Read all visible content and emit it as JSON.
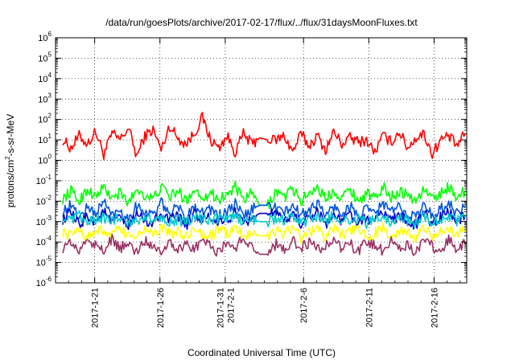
{
  "chart_data": {
    "type": "line",
    "title": "/data/run/goesPlots/archive/2017-02-17/flux/../flux/31daysMoonFluxes.txt",
    "xlabel": "Coordinated Universal Time (UTC)",
    "ylabel_parts": [
      "protons/cm",
      "2",
      "-s-sr-MeV"
    ],
    "yscale": "log",
    "ylim": [
      1e-06,
      1000000.0
    ],
    "y_tick_labels": [
      {
        "base": "10",
        "exp": "-6"
      },
      {
        "base": "10",
        "exp": "-5"
      },
      {
        "base": "10",
        "exp": "-4"
      },
      {
        "base": "10",
        "exp": "-3"
      },
      {
        "base": "10",
        "exp": "-2"
      },
      {
        "base": "10",
        "exp": "-1"
      },
      {
        "base": "10",
        "exp": "0"
      },
      {
        "base": "10",
        "exp": "1"
      },
      {
        "base": "10",
        "exp": "2"
      },
      {
        "base": "10",
        "exp": "3"
      },
      {
        "base": "10",
        "exp": "4"
      },
      {
        "base": "10",
        "exp": "5"
      },
      {
        "base": "10",
        "exp": "6"
      }
    ],
    "xlim": [
      "2017-01-18",
      "2017-02-18T12:00"
    ],
    "x_ticks": [
      {
        "date": "2017-01-21",
        "label": [
          "2017-1-21"
        ]
      },
      {
        "date": "2017-01-26",
        "label": [
          "2017-1-26"
        ]
      },
      {
        "date": "2017-01-31",
        "label": [
          "2017-1-31",
          "2017-2-1"
        ]
      },
      {
        "date": "2017-02-06",
        "label": [
          "2017-2-6"
        ]
      },
      {
        "date": "2017-02-11",
        "label": [
          "2017-2-11"
        ]
      },
      {
        "date": "2017-02-16",
        "label": [
          "2017-2-16"
        ]
      }
    ],
    "grid": true,
    "series": [
      {
        "color": "#ff0000",
        "values_log10": [
          1.0,
          0.6,
          1.2,
          0.8,
          1.4,
          0.3,
          1.3,
          1.0,
          1.6,
          0.2,
          1.2,
          1.5,
          0.5,
          1.7,
          1.1,
          0.8,
          1.3,
          2.1,
          1.0,
          0.6,
          1.2,
          0.4,
          1.3,
          0.8,
          1.1,
          1.0,
          1.0,
          1.2,
          0.4,
          1.3,
          0.7,
          1.2,
          0.5,
          1.4,
          0.8,
          1.1,
          0.9,
          1.0,
          0.4,
          1.2,
          0.9,
          1.4,
          0.6,
          1.1,
          1.3,
          0.3,
          1.0,
          1.2,
          0.7,
          1.3
        ]
      },
      {
        "color": "#00ff00",
        "values_log10": [
          -1.9,
          -1.5,
          -2.0,
          -1.4,
          -1.8,
          -1.3,
          -1.9,
          -1.6,
          -2.1,
          -1.4,
          -1.7,
          -1.9,
          -1.3,
          -1.8,
          -1.5,
          -2.0,
          -1.4,
          -1.8,
          -1.6,
          -1.9,
          -1.7,
          -1.3,
          -2.0,
          -1.6,
          -2.2,
          -2.2,
          -1.5,
          -1.8,
          -1.4,
          -2.0,
          -1.6,
          -1.3,
          -1.9,
          -1.5,
          -1.8,
          -1.4,
          -2.0,
          -1.6,
          -1.9,
          -1.3,
          -1.8,
          -1.5,
          -1.7,
          -2.0,
          -1.4,
          -1.9,
          -1.6,
          -1.3,
          -1.8,
          -1.5
        ]
      },
      {
        "color": "#0055dd",
        "values_log10": [
          -2.5,
          -2.2,
          -2.8,
          -2.3,
          -2.6,
          -2.0,
          -2.7,
          -2.4,
          -2.9,
          -2.2,
          -2.5,
          -2.7,
          -2.1,
          -2.6,
          -2.3,
          -2.8,
          -2.2,
          -2.5,
          -2.4,
          -2.7,
          -2.6,
          -2.1,
          -2.8,
          -2.4,
          -2.2,
          -2.2,
          -2.3,
          -2.6,
          -2.2,
          -2.7,
          -2.4,
          -2.1,
          -2.7,
          -2.3,
          -2.6,
          -2.2,
          -2.8,
          -2.4,
          -2.6,
          -2.1,
          -2.5,
          -2.3,
          -2.6,
          -2.8,
          -2.2,
          -2.7,
          -2.4,
          -2.1,
          -2.6,
          -2.3
        ]
      },
      {
        "color": "#0000cc",
        "values_log10": [
          -2.9,
          -2.6,
          -3.2,
          -2.7,
          -3.0,
          -2.5,
          -3.1,
          -2.8,
          -3.3,
          -2.6,
          -2.9,
          -3.1,
          -2.5,
          -3.0,
          -2.7,
          -3.2,
          -2.6,
          -2.9,
          -2.8,
          -3.1,
          -3.0,
          -2.5,
          -3.2,
          -2.8,
          -2.6,
          -2.6,
          -2.7,
          -3.0,
          -2.6,
          -3.1,
          -2.8,
          -2.5,
          -3.1,
          -2.7,
          -3.0,
          -2.6,
          -3.2,
          -2.8,
          -3.0,
          -2.5,
          -2.9,
          -2.7,
          -3.0,
          -3.2,
          -2.6,
          -3.1,
          -2.8,
          -2.5,
          -3.0,
          -2.7
        ]
      },
      {
        "color": "#00cccc",
        "values_log10": [
          -2.8,
          -3.0,
          -2.7,
          -3.1,
          -2.9,
          -2.8,
          -3.0,
          -2.7,
          -3.1,
          -2.9,
          -2.8,
          -3.0,
          -2.7,
          -3.0,
          -2.9,
          -3.1,
          -2.8,
          -2.9,
          -3.0,
          -2.8,
          -2.9,
          -2.7,
          -3.0,
          -2.9,
          -3.0,
          -3.0,
          -2.8,
          -3.0,
          -2.7,
          -3.1,
          -2.9,
          -2.8,
          -3.0,
          -2.7,
          -2.9,
          -3.0,
          -2.8,
          -3.1,
          -2.9,
          -2.7,
          -3.0,
          -2.8,
          -2.9,
          -3.1,
          -2.7,
          -3.0,
          -2.9,
          -2.8,
          -3.0,
          -2.8
        ]
      },
      {
        "color": "#ffff00",
        "values_log10": [
          -3.5,
          -3.7,
          -3.3,
          -3.8,
          -3.5,
          -3.4,
          -3.7,
          -3.3,
          -3.8,
          -3.6,
          -3.4,
          -3.7,
          -3.3,
          -3.6,
          -3.5,
          -3.8,
          -3.4,
          -3.6,
          -3.7,
          -3.4,
          -3.6,
          -3.3,
          -3.7,
          -3.5,
          -3.7,
          -3.7,
          -3.4,
          -3.6,
          -3.3,
          -3.8,
          -3.5,
          -3.4,
          -3.7,
          -3.3,
          -3.6,
          -3.5,
          -3.4,
          -3.8,
          -3.6,
          -3.3,
          -3.7,
          -3.4,
          -3.6,
          -3.8,
          -3.3,
          -3.7,
          -3.5,
          -3.4,
          -3.6,
          -3.4
        ]
      },
      {
        "color": "#993366",
        "values_log10": [
          -4.3,
          -4.0,
          -4.5,
          -3.8,
          -4.2,
          -4.4,
          -3.9,
          -4.3,
          -4.1,
          -4.5,
          -3.9,
          -4.2,
          -4.4,
          -4.0,
          -4.3,
          -4.1,
          -4.4,
          -3.9,
          -4.2,
          -4.5,
          -4.0,
          -4.3,
          -3.8,
          -4.2,
          -4.6,
          -4.6,
          -4.1,
          -4.4,
          -3.9,
          -4.3,
          -4.0,
          -4.4,
          -4.2,
          -3.9,
          -4.3,
          -4.1,
          -4.5,
          -4.0,
          -4.2,
          -4.4,
          -3.9,
          -4.3,
          -4.1,
          -4.5,
          -4.0,
          -4.2,
          -4.4,
          -3.9,
          -4.3,
          -4.1
        ]
      }
    ]
  }
}
